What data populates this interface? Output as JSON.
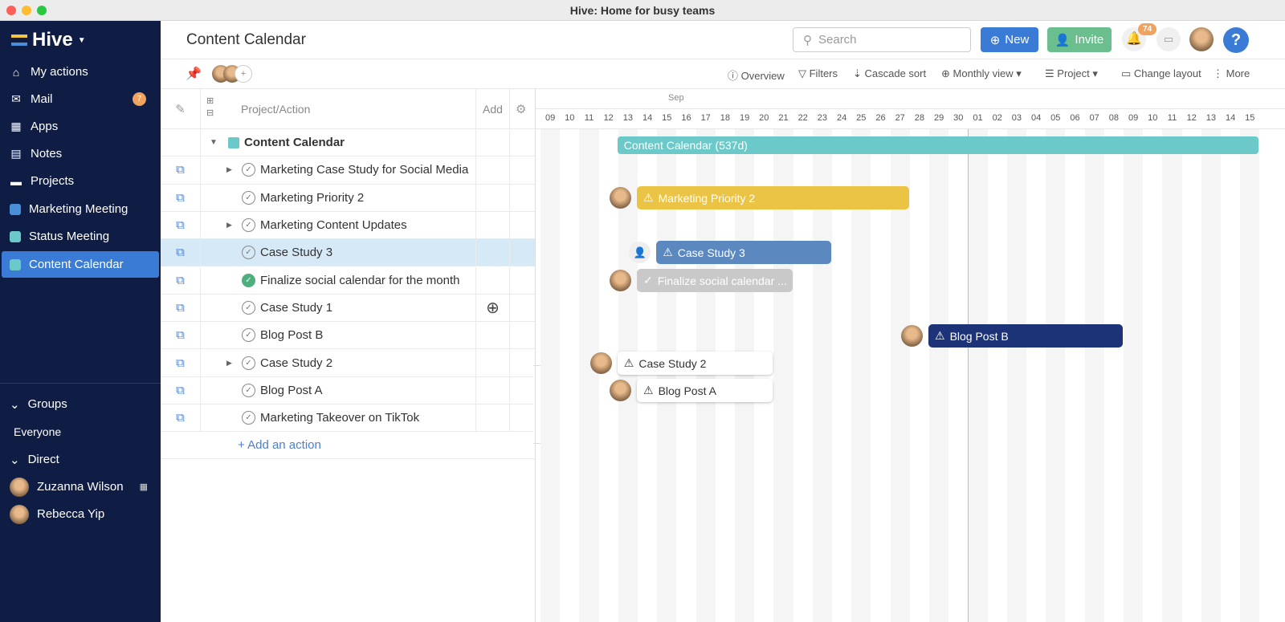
{
  "window": {
    "title": "Hive: Home for busy teams"
  },
  "sidebar": {
    "logo": "Hive",
    "items": [
      {
        "label": "My actions",
        "icon": "home-icon"
      },
      {
        "label": "Mail",
        "icon": "mail-icon",
        "badge": "7"
      },
      {
        "label": "Apps",
        "icon": "apps-icon"
      },
      {
        "label": "Notes",
        "icon": "notes-icon"
      },
      {
        "label": "Projects",
        "icon": "folder-icon"
      },
      {
        "label": "Marketing Meeting",
        "color": "#4a90d9"
      },
      {
        "label": "Status Meeting",
        "color": "#6cc9c9"
      },
      {
        "label": "Content Calendar",
        "color": "#6cc9c9",
        "active": true
      }
    ],
    "groups_label": "Groups",
    "everyone": "Everyone",
    "direct_label": "Direct",
    "direct": [
      {
        "name": "Zuzanna Wilson"
      },
      {
        "name": "Rebecca Yip"
      }
    ]
  },
  "header": {
    "title": "Content Calendar",
    "search_placeholder": "Search",
    "new_label": "New",
    "invite_label": "Invite",
    "notifications": "74",
    "help": "?"
  },
  "toolbar": {
    "overview": "Overview",
    "filters": "Filters",
    "cascade_sort": "Cascade sort",
    "monthly_view": "Monthly view",
    "project": "Project",
    "change_layout": "Change layout",
    "more": "More"
  },
  "table": {
    "col_project": "Project/Action",
    "col_add": "Add",
    "group": "Content Calendar",
    "add_action": "+ Add an action",
    "rows": [
      {
        "name": "Marketing Case Study for Social Media",
        "expand": true
      },
      {
        "name": "Marketing Priority 2"
      },
      {
        "name": "Marketing Content Updates",
        "expand": true
      },
      {
        "name": "Case Study 3",
        "selected": true
      },
      {
        "name": "Finalize social calendar for the month",
        "done": true
      },
      {
        "name": "Case Study 1"
      },
      {
        "name": "Blog Post B"
      },
      {
        "name": "Case Study 2",
        "expand": true
      },
      {
        "name": "Blog Post A"
      },
      {
        "name": "Marketing Takeover on TikTok"
      }
    ]
  },
  "timeline": {
    "month": "Sep",
    "days": [
      "09",
      "10",
      "11",
      "12",
      "13",
      "14",
      "15",
      "16",
      "17",
      "18",
      "19",
      "20",
      "21",
      "22",
      "23",
      "24",
      "25",
      "26",
      "27",
      "28",
      "29",
      "30",
      "01",
      "02",
      "03",
      "04",
      "05",
      "06",
      "07",
      "08",
      "09",
      "10",
      "11",
      "12",
      "13",
      "14",
      "15"
    ],
    "bars": [
      {
        "label": "Content Calendar (537d)",
        "color": "#6cc9c9"
      },
      {
        "label": "Marketing Priority 2",
        "color": "#ecc445",
        "warn": true
      },
      {
        "label": "Case Study 3",
        "color": "#5b88bf",
        "warn": true
      },
      {
        "label": "Finalize social calendar ...",
        "color": "#c9c9c9",
        "done": true
      },
      {
        "label": "Blog Post B",
        "color": "#1c3378",
        "warn": true
      },
      {
        "label": "Case Study 2",
        "color": "#ffffff",
        "warn": true
      },
      {
        "label": "Blog Post A",
        "color": "#ffffff",
        "warn": true
      }
    ]
  }
}
